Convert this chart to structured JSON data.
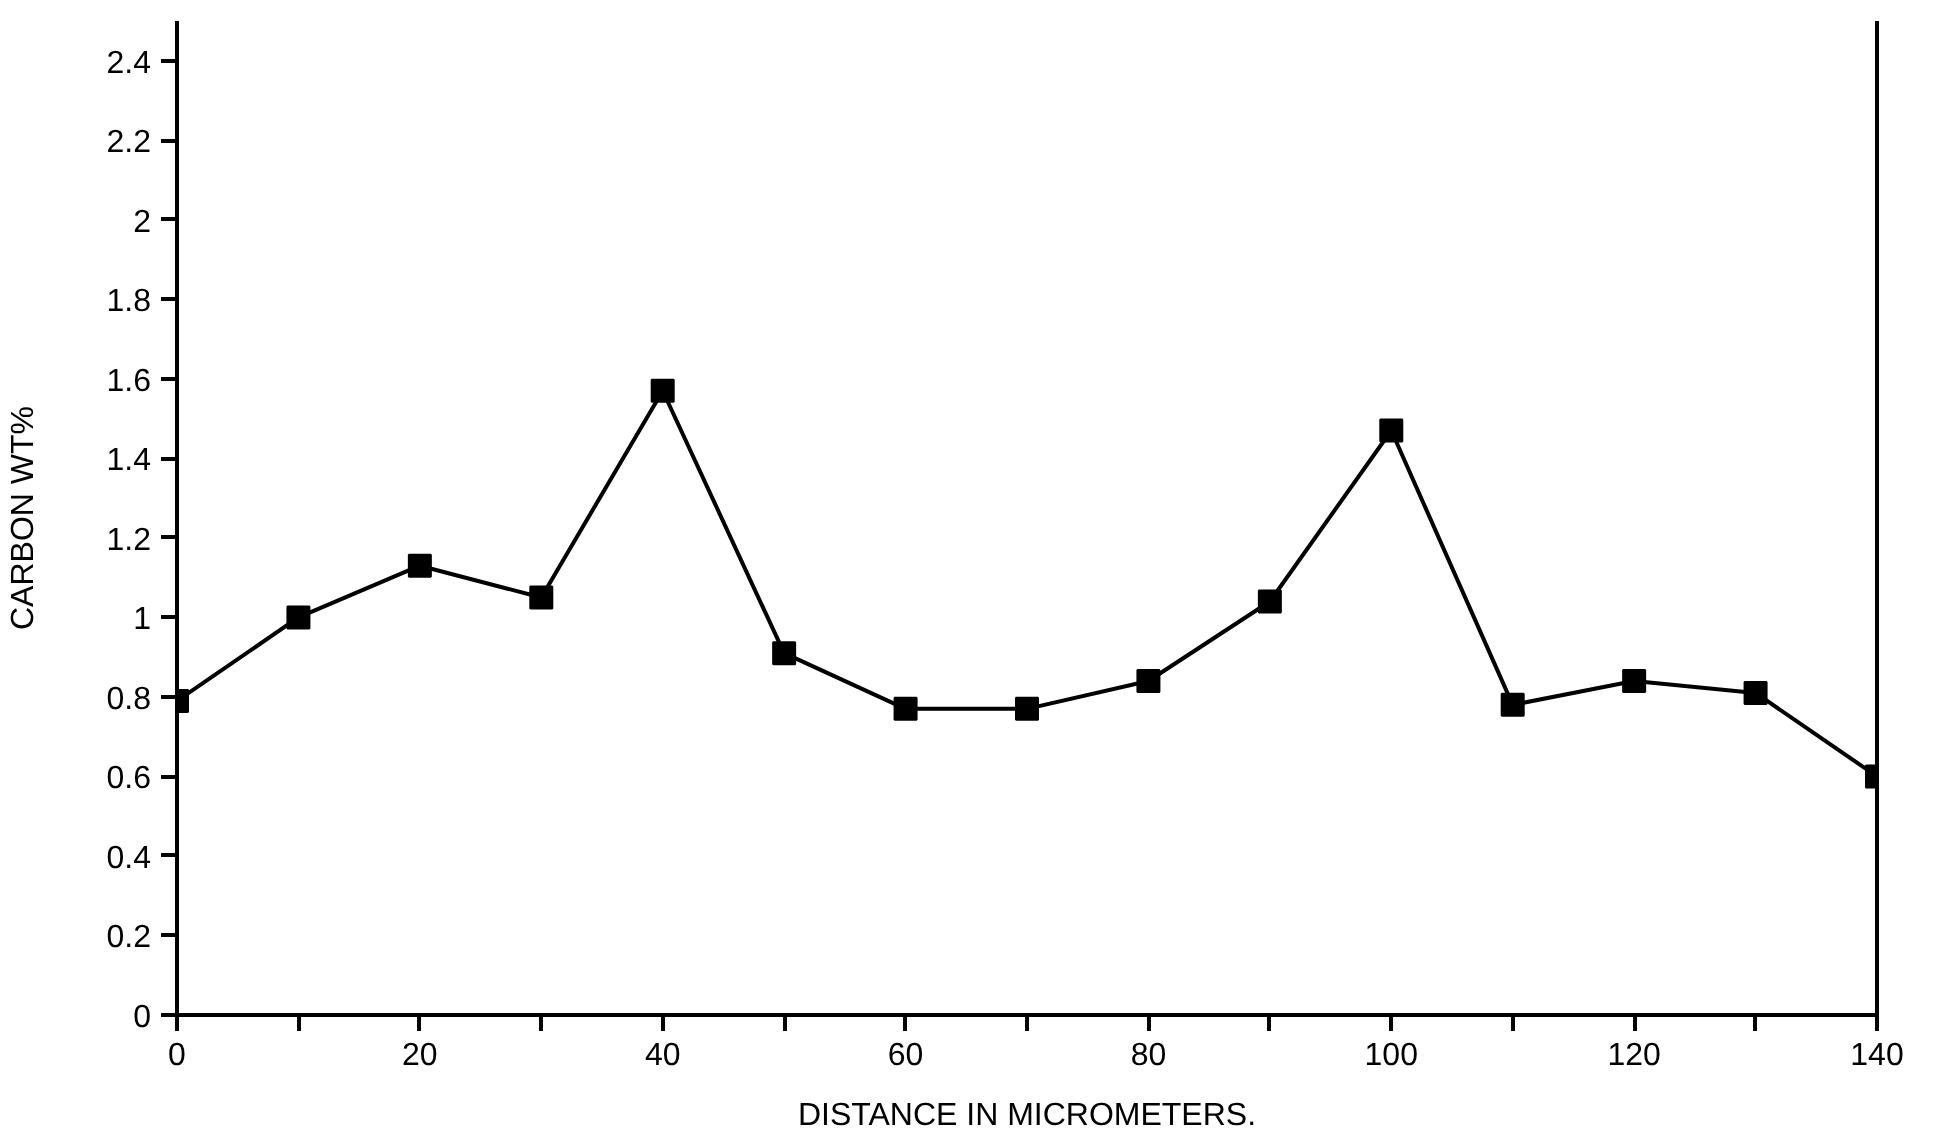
{
  "chart_data": {
    "type": "line",
    "xlabel": "DISTANCE IN MICROMETERS.",
    "ylabel": "CARBON WT%",
    "x": [
      0,
      10,
      20,
      30,
      40,
      50,
      60,
      70,
      80,
      90,
      100,
      110,
      120,
      130,
      140
    ],
    "series": [
      {
        "color": "#000000",
        "values": [
          0.79,
          1.0,
          1.13,
          1.05,
          1.57,
          0.91,
          0.77,
          0.77,
          0.84,
          1.04,
          1.47,
          0.78,
          0.84,
          0.81,
          0.6
        ]
      }
    ],
    "xlim": [
      0,
      140
    ],
    "ylim": [
      0,
      2.5
    ],
    "xticks": [
      0,
      {
        "value": 10,
        "label": null
      },
      20,
      {
        "value": 30,
        "label": null
      },
      40,
      {
        "value": 50,
        "label": null
      },
      60,
      {
        "value": 70,
        "label": null
      },
      80,
      {
        "value": 90,
        "label": null
      },
      100,
      {
        "value": 110,
        "label": null
      },
      120,
      {
        "value": 130,
        "label": null
      },
      140
    ],
    "yticks": [
      0,
      0.2,
      0.4,
      0.6,
      0.8,
      1,
      1.2,
      1.4,
      1.6,
      1.8,
      2,
      2.2,
      2.4
    ],
    "grid": false,
    "marker": "square",
    "line_style": "solid"
  }
}
